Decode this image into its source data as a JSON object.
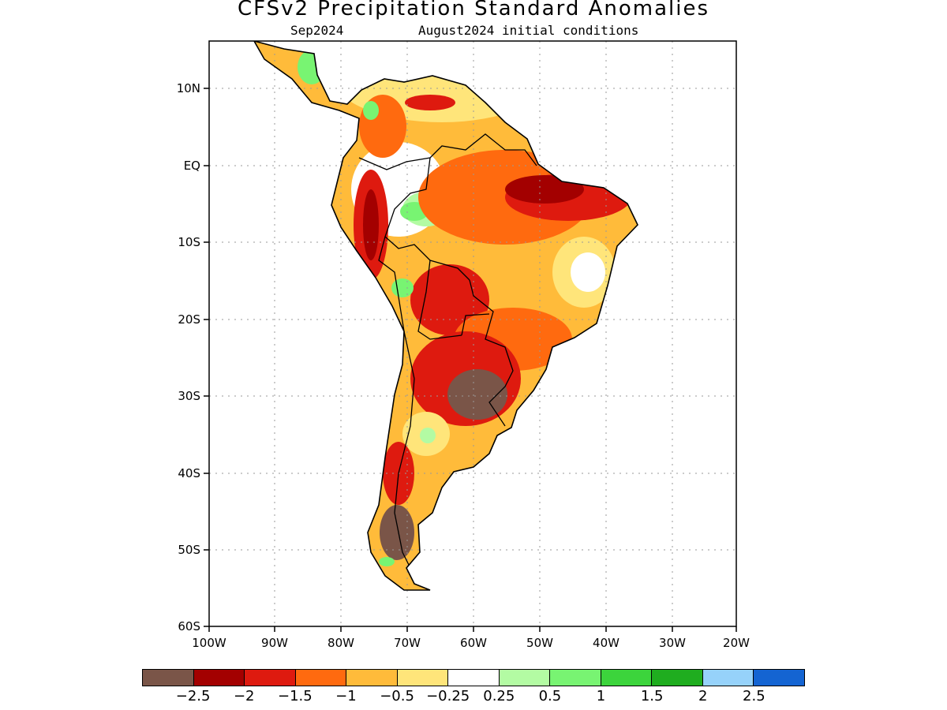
{
  "title": "CFSv2 Precipitation Standard Anomalies",
  "subtitle": {
    "target_month": "Sep2024",
    "initial_conditions": "August2024 initial conditions"
  },
  "axes": {
    "longitude_labels": [
      "100W",
      "90W",
      "80W",
      "70W",
      "60W",
      "50W",
      "40W",
      "30W",
      "20W"
    ],
    "latitude_labels": [
      "10N",
      "EQ",
      "10S",
      "20S",
      "30S",
      "40S",
      "50S",
      "60S"
    ],
    "lon_range": [
      -100,
      -20
    ],
    "lat_range": [
      -60,
      15.5
    ],
    "grid": "dotted"
  },
  "legend": {
    "colors": [
      "#7a5548",
      "#a30000",
      "#de1a0f",
      "#ff6a0f",
      "#ffbb3a",
      "#ffe57a",
      "#ffffff",
      "#b3fba3",
      "#78f472",
      "#3cd43c",
      "#1fad1f",
      "#96d2fa",
      "#1464d2"
    ],
    "tick_labels": [
      "−2.5",
      "−2",
      "−1.5",
      "−1",
      "−0.5",
      "−0.25",
      "0.25",
      "0.5",
      "1",
      "1.5",
      "2",
      "2.5"
    ]
  },
  "chart_data": {
    "type": "heatmap",
    "title": "CFSv2 Precipitation Standard Anomalies",
    "subtitle": "Sep2024 August2024 initial conditions",
    "region": "South America",
    "x_range_lon": [
      -100,
      -20
    ],
    "y_range_lat": [
      -60,
      15.5
    ],
    "color_bins": [
      -2.5,
      -2,
      -1.5,
      -1,
      -0.5,
      -0.25,
      0.25,
      0.5,
      1,
      1.5,
      2,
      2.5
    ],
    "areas": [
      {
        "region": "Northern Brazil / Amazon mouth",
        "anomaly": "< -2"
      },
      {
        "region": "Paraguay / NE Argentina / Uruguay",
        "anomaly": "< -2.5"
      },
      {
        "region": "Southern Patagonia",
        "anomaly": "< -2.5"
      },
      {
        "region": "Central Brazil",
        "anomaly": "-1 to -0.5"
      },
      {
        "region": "Western Amazon (Peru)",
        "anomaly": "0.5 to 1"
      },
      {
        "region": "Central America",
        "anomaly": "0.5 to 1.5"
      },
      {
        "region": "Eastern Brazil",
        "anomaly": "-0.25 to 0.5"
      }
    ]
  }
}
